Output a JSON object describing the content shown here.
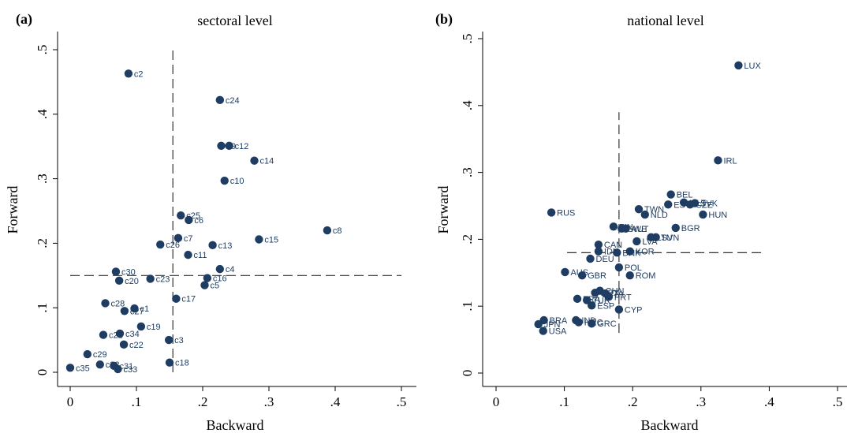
{
  "chart_data": [
    {
      "type": "scatter",
      "panel_label": "(a)",
      "title": "sectoral level",
      "xlabel": "Backward",
      "ylabel": "Forward",
      "xlim": [
        0,
        0.5
      ],
      "ylim": [
        0,
        0.5
      ],
      "xticks": [
        0,
        0.1,
        0.2,
        0.3,
        0.4,
        0.5
      ],
      "yticks": [
        0,
        0.1,
        0.2,
        0.3,
        0.4,
        0.5
      ],
      "xtick_labels": [
        "0",
        ".1",
        ".2",
        ".3",
        ".4",
        ".5"
      ],
      "ytick_labels": [
        "0",
        ".1",
        ".2",
        ".3",
        ".4",
        ".5"
      ],
      "ref_x": 0.155,
      "ref_y": 0.15,
      "marker_color": "#1f3d63",
      "grid": false,
      "points": [
        {
          "label": "c2",
          "x": 0.088,
          "y": 0.463
        },
        {
          "label": "c24",
          "x": 0.226,
          "y": 0.422
        },
        {
          "label": "c9",
          "x": 0.228,
          "y": 0.351
        },
        {
          "label": "c12",
          "x": 0.24,
          "y": 0.351
        },
        {
          "label": "c14",
          "x": 0.278,
          "y": 0.328
        },
        {
          "label": "c10",
          "x": 0.233,
          "y": 0.297
        },
        {
          "label": "c25",
          "x": 0.167,
          "y": 0.243
        },
        {
          "label": "c6",
          "x": 0.179,
          "y": 0.236
        },
        {
          "label": "c8",
          "x": 0.388,
          "y": 0.22
        },
        {
          "label": "c7",
          "x": 0.163,
          "y": 0.208
        },
        {
          "label": "c15",
          "x": 0.285,
          "y": 0.206
        },
        {
          "label": "c26",
          "x": 0.136,
          "y": 0.198
        },
        {
          "label": "c13",
          "x": 0.215,
          "y": 0.197
        },
        {
          "label": "c11",
          "x": 0.178,
          "y": 0.182
        },
        {
          "label": "c4",
          "x": 0.226,
          "y": 0.16
        },
        {
          "label": "c30",
          "x": 0.069,
          "y": 0.156
        },
        {
          "label": "c16",
          "x": 0.207,
          "y": 0.146
        },
        {
          "label": "c23",
          "x": 0.121,
          "y": 0.145
        },
        {
          "label": "c20",
          "x": 0.074,
          "y": 0.142
        },
        {
          "label": "c5",
          "x": 0.203,
          "y": 0.135
        },
        {
          "label": "c17",
          "x": 0.16,
          "y": 0.114
        },
        {
          "label": "c28",
          "x": 0.053,
          "y": 0.107
        },
        {
          "label": "c1",
          "x": 0.097,
          "y": 0.099
        },
        {
          "label": "c27",
          "x": 0.082,
          "y": 0.095
        },
        {
          "label": "c19",
          "x": 0.107,
          "y": 0.071
        },
        {
          "label": "c34",
          "x": 0.075,
          "y": 0.06
        },
        {
          "label": "c21",
          "x": 0.05,
          "y": 0.058
        },
        {
          "label": "c3",
          "x": 0.149,
          "y": 0.05
        },
        {
          "label": "c22",
          "x": 0.081,
          "y": 0.043
        },
        {
          "label": "c29",
          "x": 0.026,
          "y": 0.028
        },
        {
          "label": "c18",
          "x": 0.15,
          "y": 0.015
        },
        {
          "label": "c32",
          "x": 0.045,
          "y": 0.012
        },
        {
          "label": "c31",
          "x": 0.066,
          "y": 0.01
        },
        {
          "label": "c35",
          "x": 0.0,
          "y": 0.007
        },
        {
          "label": "c33",
          "x": 0.072,
          "y": 0.005
        }
      ]
    },
    {
      "type": "scatter",
      "panel_label": "(b)",
      "title": "national level",
      "xlabel": "Backward",
      "ylabel": "Forward",
      "xlim": [
        0,
        0.5
      ],
      "ylim": [
        0,
        0.5
      ],
      "xticks": [
        0,
        0.1,
        0.2,
        0.3,
        0.4,
        0.5
      ],
      "yticks": [
        0,
        0.1,
        0.2,
        0.3,
        0.4,
        0.5
      ],
      "xtick_labels": [
        "0",
        ".1",
        ".2",
        ".3",
        ".4",
        ".5"
      ],
      "ytick_labels": [
        "0",
        ".1",
        ".2",
        ".3",
        ".4",
        ".5"
      ],
      "ref_x": 0.18,
      "ref_y": 0.18,
      "marker_color": "#1f3d63",
      "grid": false,
      "points": [
        {
          "label": "LUX",
          "x": 0.355,
          "y": 0.46
        },
        {
          "label": "IRL",
          "x": 0.325,
          "y": 0.318
        },
        {
          "label": "BEL",
          "x": 0.256,
          "y": 0.267
        },
        {
          "label": "MLT",
          "x": 0.275,
          "y": 0.255
        },
        {
          "label": "EST",
          "x": 0.252,
          "y": 0.252
        },
        {
          "label": "SVK",
          "x": 0.291,
          "y": 0.254
        },
        {
          "label": "CZE",
          "x": 0.284,
          "y": 0.252
        },
        {
          "label": "TWN",
          "x": 0.209,
          "y": 0.245
        },
        {
          "label": "RUS",
          "x": 0.081,
          "y": 0.24
        },
        {
          "label": "NLD",
          "x": 0.218,
          "y": 0.237
        },
        {
          "label": "HUN",
          "x": 0.303,
          "y": 0.237
        },
        {
          "label": "FIN",
          "x": 0.172,
          "y": 0.219
        },
        {
          "label": "BGR",
          "x": 0.263,
          "y": 0.217
        },
        {
          "label": "SWE",
          "x": 0.184,
          "y": 0.216
        },
        {
          "label": "AUT",
          "x": 0.19,
          "y": 0.216
        },
        {
          "label": "LTU",
          "x": 0.227,
          "y": 0.203
        },
        {
          "label": "SVN",
          "x": 0.234,
          "y": 0.203
        },
        {
          "label": "LVA",
          "x": 0.206,
          "y": 0.197
        },
        {
          "label": "CAN",
          "x": 0.15,
          "y": 0.192
        },
        {
          "label": "IDN",
          "x": 0.15,
          "y": 0.182
        },
        {
          "label": "KOR",
          "x": 0.196,
          "y": 0.182
        },
        {
          "label": "DNK",
          "x": 0.177,
          "y": 0.18
        },
        {
          "label": "DEU",
          "x": 0.138,
          "y": 0.171
        },
        {
          "label": "POL",
          "x": 0.18,
          "y": 0.158
        },
        {
          "label": "AUS",
          "x": 0.101,
          "y": 0.151
        },
        {
          "label": "GBR",
          "x": 0.126,
          "y": 0.146
        },
        {
          "label": "ROM",
          "x": 0.196,
          "y": 0.146
        },
        {
          "label": "CHN",
          "x": 0.152,
          "y": 0.123
        },
        {
          "label": "MEX",
          "x": 0.145,
          "y": 0.12
        },
        {
          "label": "ITA",
          "x": 0.16,
          "y": 0.119
        },
        {
          "label": "PRT",
          "x": 0.165,
          "y": 0.114
        },
        {
          "label": "FRA",
          "x": 0.119,
          "y": 0.111
        },
        {
          "label": "TUR",
          "x": 0.133,
          "y": 0.109
        },
        {
          "label": "ESP",
          "x": 0.14,
          "y": 0.101
        },
        {
          "label": "CYP",
          "x": 0.18,
          "y": 0.095
        },
        {
          "label": "BRA",
          "x": 0.07,
          "y": 0.079
        },
        {
          "label": "IND",
          "x": 0.117,
          "y": 0.079
        },
        {
          "label": "JPN",
          "x": 0.062,
          "y": 0.073
        },
        {
          "label": "HRC",
          "x": 0.121,
          "y": 0.076
        },
        {
          "label": "GRC",
          "x": 0.14,
          "y": 0.074
        },
        {
          "label": "USA",
          "x": 0.069,
          "y": 0.063
        }
      ]
    }
  ]
}
